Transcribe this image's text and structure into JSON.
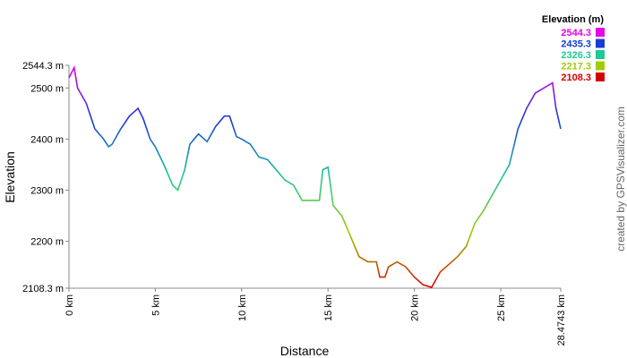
{
  "chart_data": {
    "type": "line",
    "x_label": "Distance",
    "y_label": "Elevation",
    "credit": "created by GPSVisualizer.com",
    "xlim": [
      0,
      28.4743
    ],
    "ylim": [
      2108.3,
      2544.3
    ],
    "xticks": [
      {
        "value": 0,
        "label": "0 km"
      },
      {
        "value": 5,
        "label": "5 km"
      },
      {
        "value": 10,
        "label": "10 km"
      },
      {
        "value": 15,
        "label": "15 km"
      },
      {
        "value": 20,
        "label": "20 km"
      },
      {
        "value": 25,
        "label": "25 km"
      },
      {
        "value": 28.4743,
        "label": "28.4743 km"
      }
    ],
    "yticks": [
      {
        "value": 2108.3,
        "label": "2108.3 m"
      },
      {
        "value": 2200,
        "label": "2200 m"
      },
      {
        "value": 2300,
        "label": "2300 m"
      },
      {
        "value": 2400,
        "label": "2400 m"
      },
      {
        "value": 2500,
        "label": "2500 m"
      },
      {
        "value": 2544.3,
        "label": "2544.3 m"
      }
    ],
    "legend": {
      "title": "Elevation (m)",
      "entries": [
        {
          "value": 2544.3,
          "color": "#e600e6"
        },
        {
          "value": 2435.3,
          "color": "#1a3bd6"
        },
        {
          "value": 2326.3,
          "color": "#1fc896"
        },
        {
          "value": 2217.3,
          "color": "#a0cc00"
        },
        {
          "value": 2108.3,
          "color": "#d40000"
        }
      ]
    },
    "x": [
      0,
      0.3,
      0.5,
      1.0,
      1.5,
      2.0,
      2.3,
      2.5,
      3.0,
      3.5,
      4.0,
      4.3,
      4.7,
      5.0,
      5.5,
      6.0,
      6.3,
      6.7,
      7.0,
      7.5,
      8.0,
      8.5,
      9.0,
      9.3,
      9.7,
      10.0,
      10.5,
      11.0,
      11.5,
      12.0,
      12.5,
      13.0,
      13.5,
      14.0,
      14.5,
      14.7,
      15.0,
      15.3,
      15.8,
      16.3,
      16.8,
      17.3,
      17.8,
      18.0,
      18.3,
      18.5,
      19.0,
      19.5,
      20.0,
      20.5,
      21.0,
      21.5,
      22.0,
      22.5,
      23.0,
      23.5,
      24.0,
      24.5,
      25.0,
      25.5,
      26.0,
      26.5,
      27.0,
      27.5,
      28.0,
      28.2,
      28.4743
    ],
    "values": [
      2520,
      2540,
      2500,
      2470,
      2420,
      2400,
      2385,
      2390,
      2420,
      2445,
      2460,
      2440,
      2400,
      2385,
      2350,
      2310,
      2300,
      2340,
      2390,
      2410,
      2395,
      2425,
      2445,
      2445,
      2405,
      2400,
      2390,
      2365,
      2360,
      2340,
      2320,
      2310,
      2280,
      2280,
      2280,
      2340,
      2345,
      2270,
      2250,
      2210,
      2170,
      2160,
      2160,
      2130,
      2130,
      2150,
      2160,
      2150,
      2130,
      2115,
      2110,
      2140,
      2155,
      2170,
      2190,
      2235,
      2260,
      2290,
      2320,
      2350,
      2420,
      2460,
      2490,
      2500,
      2510,
      2460,
      2420
    ]
  }
}
